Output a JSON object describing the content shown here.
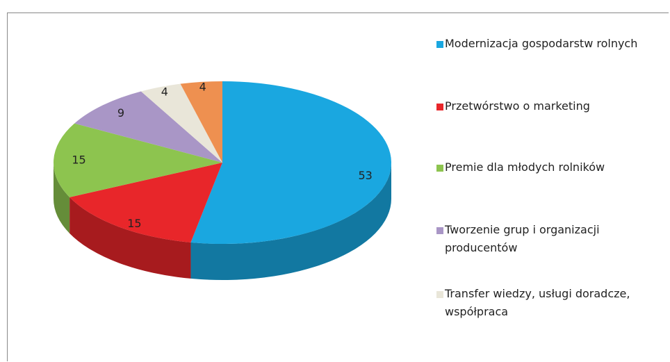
{
  "chart_data": {
    "type": "pie",
    "categories": [
      "Modernizacja gospodarstw rolnych",
      "Przetwórstwo o marketing",
      "Premie dla młodych rolników",
      "Tworzenie grup i organizacji producentów",
      "Transfer wiedzy, usługi doradcze, współpraca",
      null
    ],
    "values": [
      53,
      15,
      15,
      9,
      4,
      4
    ],
    "colors": [
      "#1aa7e0",
      "#e8262a",
      "#8dc44f",
      "#a996c6",
      "#e9e6d9",
      "#ee9050"
    ],
    "legend": "right"
  }
}
